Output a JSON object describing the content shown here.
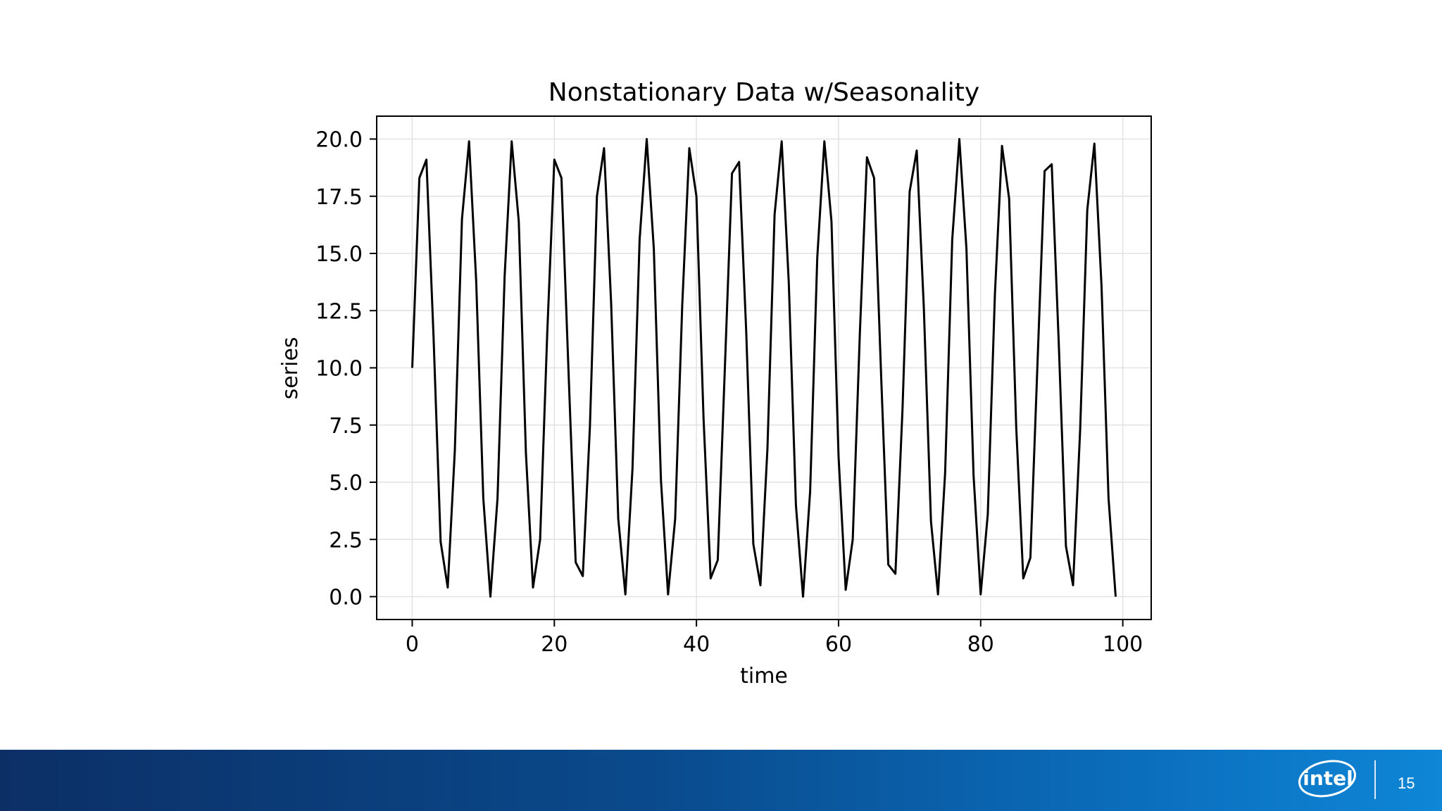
{
  "slide": {
    "page_number": "15",
    "logo_text": "intel"
  },
  "colors": {
    "line": "#000000",
    "grid": "#e2e2e2",
    "axes": "#000000",
    "footer_start": "#0c2f66",
    "footer_end": "#0f86d6"
  },
  "chart_data": {
    "type": "line",
    "title": "Nonstationary Data w/Seasonality",
    "xlabel": "time",
    "ylabel": "series",
    "xlim": [
      -5,
      104
    ],
    "ylim": [
      -1,
      21
    ],
    "grid": true,
    "xticks": [
      0,
      20,
      40,
      60,
      80,
      100
    ],
    "xtick_labels": [
      "0",
      "20",
      "40",
      "60",
      "80",
      "100"
    ],
    "yticks": [
      0,
      2.5,
      5,
      7.5,
      10,
      12.5,
      15,
      17.5,
      20
    ],
    "ytick_labels": [
      "0.0",
      "2.5",
      "5.0",
      "7.5",
      "10.0",
      "12.5",
      "15.0",
      "17.5",
      "20.0"
    ],
    "series": [
      {
        "x": [
          0,
          1,
          2,
          3,
          4,
          5,
          6,
          7,
          8,
          9,
          10,
          11,
          12,
          13,
          14,
          15,
          16,
          17,
          18,
          19,
          20,
          21,
          22,
          23,
          24,
          25,
          26,
          27,
          28,
          29,
          30,
          31,
          32,
          33,
          34,
          35,
          36,
          37,
          38,
          39,
          40,
          41,
          42,
          43,
          44,
          45,
          46,
          47,
          48,
          49,
          50,
          51,
          52,
          53,
          54,
          55,
          56,
          57,
          58,
          59,
          60,
          61,
          62,
          63,
          64,
          65,
          66,
          67,
          68,
          69,
          70,
          71,
          72,
          73,
          74,
          75,
          76,
          77,
          78,
          79,
          80,
          81,
          82,
          83,
          84,
          85,
          86,
          87,
          88,
          89,
          90,
          91,
          92,
          93,
          94,
          95,
          96,
          97,
          98,
          99
        ],
        "y": [
          10.0,
          18.3,
          19.1,
          11.4,
          2.4,
          0.4,
          6.4,
          16.5,
          19.9,
          13.8,
          4.3,
          0.0,
          4.3,
          14.0,
          19.9,
          16.4,
          6.3,
          0.4,
          2.5,
          11.5,
          19.1,
          18.3,
          9.8,
          1.5,
          0.9,
          7.4,
          17.5,
          19.6,
          12.8,
          3.4,
          0.1,
          5.6,
          15.6,
          20.0,
          15.2,
          5.1,
          0.1,
          3.4,
          12.7,
          19.6,
          17.5,
          7.8,
          0.8,
          1.6,
          10.0,
          18.5,
          19.0,
          11.6,
          2.3,
          0.5,
          6.5,
          16.7,
          19.9,
          13.7,
          4.0,
          0.0,
          4.6,
          14.8,
          19.9,
          16.4,
          6.1,
          0.3,
          2.5,
          11.5,
          19.2,
          18.3,
          9.6,
          1.4,
          1.0,
          8.2,
          17.7,
          19.5,
          12.6,
          3.3,
          0.1,
          5.4,
          15.6,
          20.0,
          15.2,
          5.3,
          0.1,
          3.6,
          13.2,
          19.7,
          17.4,
          7.4,
          0.8,
          1.7,
          10.2,
          18.6,
          18.9,
          11.0,
          2.2,
          0.5,
          7.3,
          16.9,
          19.8,
          13.6,
          4.3,
          0.0
        ]
      }
    ]
  }
}
